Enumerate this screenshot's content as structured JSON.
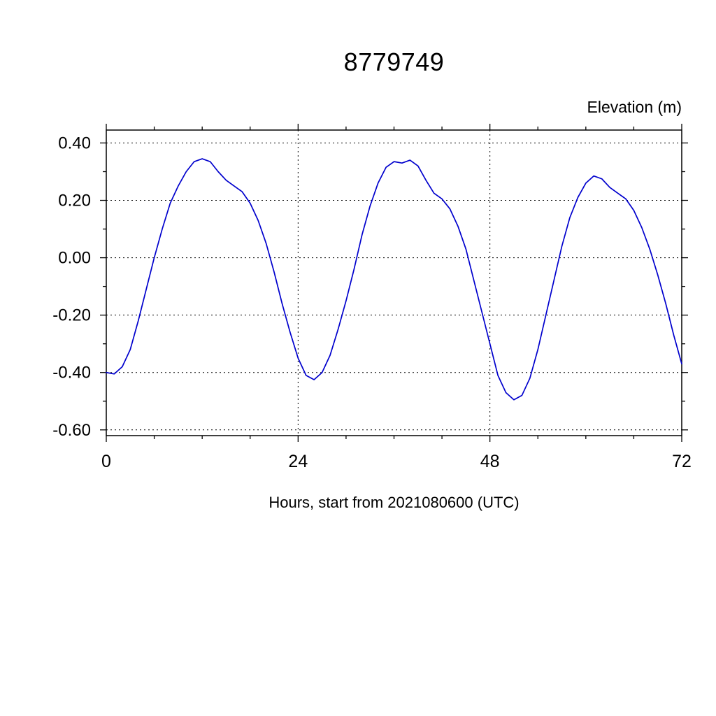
{
  "chart_data": {
    "type": "line",
    "title": "8779749",
    "ylabel": "Elevation (m)",
    "xlabel": "Hours, start from 2021080600 (UTC)",
    "xlim": [
      0,
      72
    ],
    "ylim": [
      -0.62,
      0.445
    ],
    "grid": true,
    "legend": "none",
    "line_color": "#0000cd",
    "x_ticks": {
      "values": [
        0,
        24,
        48,
        72
      ],
      "labels": [
        "0",
        "24",
        "48",
        "72"
      ]
    },
    "y_ticks": {
      "values": [
        0.4,
        0.2,
        0.0,
        -0.2,
        -0.4,
        -0.6
      ],
      "labels": [
        "0.40",
        "0.20",
        "0.00",
        "-0.20",
        "-0.40",
        "-0.60"
      ]
    },
    "x_minor_step": 6,
    "y_minor_step": 0.1,
    "series": [
      {
        "name": "elevation",
        "x": [
          0,
          1,
          2,
          3,
          4,
          5,
          6,
          7,
          8,
          9,
          10,
          11,
          12,
          13,
          14,
          15,
          16,
          17,
          18,
          19,
          20,
          21,
          22,
          23,
          24,
          25,
          26,
          27,
          28,
          29,
          30,
          31,
          32,
          33,
          34,
          35,
          36,
          37,
          38,
          39,
          40,
          41,
          42,
          43,
          44,
          45,
          46,
          47,
          48,
          49,
          50,
          51,
          52,
          53,
          54,
          55,
          56,
          57,
          58,
          59,
          60,
          61,
          62,
          63,
          64,
          65,
          66,
          67,
          68,
          69,
          70,
          71,
          72
        ],
        "y": [
          -0.4,
          -0.405,
          -0.38,
          -0.32,
          -0.22,
          -0.11,
          0.0,
          0.1,
          0.19,
          0.25,
          0.3,
          0.335,
          0.345,
          0.335,
          0.3,
          0.27,
          0.25,
          0.23,
          0.19,
          0.13,
          0.05,
          -0.05,
          -0.16,
          -0.26,
          -0.35,
          -0.41,
          -0.425,
          -0.4,
          -0.34,
          -0.25,
          -0.15,
          -0.04,
          0.08,
          0.18,
          0.26,
          0.315,
          0.335,
          0.33,
          0.34,
          0.32,
          0.27,
          0.225,
          0.205,
          0.17,
          0.11,
          0.03,
          -0.08,
          -0.19,
          -0.3,
          -0.41,
          -0.47,
          -0.495,
          -0.48,
          -0.42,
          -0.32,
          -0.2,
          -0.08,
          0.04,
          0.14,
          0.21,
          0.26,
          0.285,
          0.275,
          0.245,
          0.225,
          0.205,
          0.165,
          0.105,
          0.03,
          -0.06,
          -0.16,
          -0.27,
          -0.37
        ]
      }
    ]
  }
}
